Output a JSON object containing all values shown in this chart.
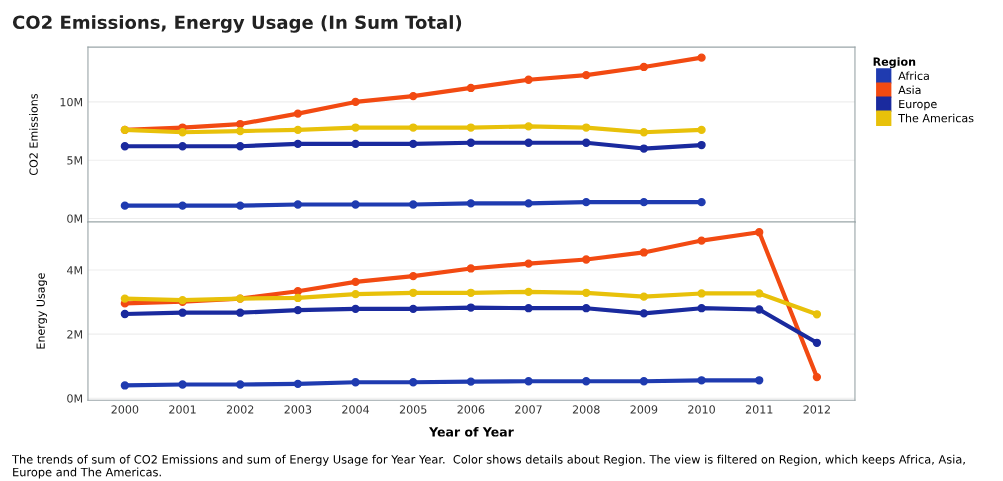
{
  "chart_data": [
    {
      "type": "line",
      "title": "CO2 Emissions, Energy Usage (In Sum Total)",
      "ylabel": "CO2 Emissions",
      "legend_title": "Region",
      "legend": "right",
      "marker": "circle",
      "grid": "y",
      "tick_labels": "y",
      "x": [
        2000,
        2001,
        2002,
        2003,
        2004,
        2005,
        2006,
        2007,
        2008,
        2009,
        2010
      ],
      "xlim": [
        1999.36,
        2012.66
      ],
      "ylim": [
        -0.3,
        14.7
      ],
      "yticks": [
        {
          "value": 0,
          "label": "0M"
        },
        {
          "value": 5,
          "label": "5M"
        },
        {
          "value": 10,
          "label": "10M"
        }
      ],
      "series": [
        {
          "name": "Africa",
          "color": "#1f3bb0",
          "values": [
            1.1,
            1.1,
            1.1,
            1.2,
            1.2,
            1.2,
            1.3,
            1.3,
            1.4,
            1.4,
            1.4
          ]
        },
        {
          "name": "Asia",
          "color": "#f24a12",
          "values": [
            7.6,
            7.8,
            8.1,
            9.0,
            10.0,
            10.5,
            11.2,
            11.9,
            12.3,
            13.0,
            13.8
          ]
        },
        {
          "name": "Europe",
          "color": "#1a2a9e",
          "values": [
            6.2,
            6.2,
            6.2,
            6.4,
            6.4,
            6.4,
            6.5,
            6.5,
            6.5,
            6.0,
            6.3
          ]
        },
        {
          "name": "The Americas",
          "color": "#e8c10a",
          "values": [
            7.6,
            7.4,
            7.5,
            7.6,
            7.8,
            7.8,
            7.8,
            7.9,
            7.8,
            7.4,
            7.6
          ]
        }
      ]
    },
    {
      "type": "line",
      "ylabel": "Energy Usage",
      "xlabel": "Year of Year",
      "marker": "circle",
      "grid": "y",
      "annotations": [
        "The trends of sum of CO2 Emissions and sum of Energy Usage for Year Year.  Color shows details about Region. The view is filtered on Region, which keeps Africa, Asia, Europe and The Americas."
      ],
      "x": [
        2000,
        2001,
        2002,
        2003,
        2004,
        2005,
        2006,
        2007,
        2008,
        2009,
        2010,
        2011,
        2012
      ],
      "xlim": [
        1999.36,
        2012.66
      ],
      "xticks": [
        2000,
        2001,
        2002,
        2003,
        2004,
        2005,
        2006,
        2007,
        2008,
        2009,
        2010,
        2011,
        2012
      ],
      "ylim": [
        -0.06,
        5.5
      ],
      "yticks": [
        {
          "value": 0,
          "label": "0M"
        },
        {
          "value": 2,
          "label": "2M"
        },
        {
          "value": 4,
          "label": "4M"
        }
      ],
      "series": [
        {
          "color": "#1f3bb0",
          "values": [
            0.4,
            0.43,
            0.43,
            0.45,
            0.5,
            0.5,
            0.52,
            0.53,
            0.53,
            0.53,
            0.56,
            0.56,
            null
          ]
        },
        {
          "color": "#f24a12",
          "values": [
            2.96,
            3.01,
            3.11,
            3.34,
            3.63,
            3.81,
            4.05,
            4.2,
            4.33,
            4.55,
            4.92,
            5.18,
            0.66
          ]
        },
        {
          "color": "#1a2a9e",
          "values": [
            2.63,
            2.67,
            2.67,
            2.75,
            2.79,
            2.79,
            2.83,
            2.81,
            2.81,
            2.65,
            2.81,
            2.77,
            1.73
          ]
        },
        {
          "color": "#e8c10a",
          "values": [
            3.11,
            3.06,
            3.11,
            3.13,
            3.25,
            3.29,
            3.29,
            3.32,
            3.29,
            3.17,
            3.27,
            3.27,
            2.62
          ]
        }
      ]
    }
  ]
}
